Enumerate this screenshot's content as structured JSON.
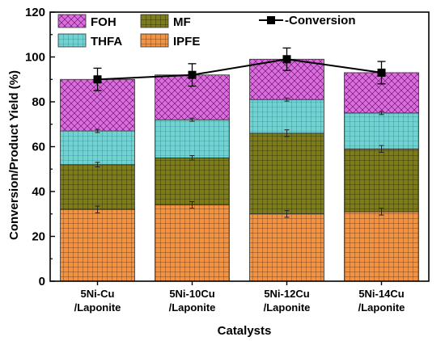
{
  "chart_data": {
    "type": "bar",
    "stacked": true,
    "categories": [
      [
        "5Ni-Cu",
        "/Laponite"
      ],
      [
        "5Ni-10Cu",
        "/Laponite"
      ],
      [
        "5Ni-12Cu",
        "/Laponite"
      ],
      [
        "5Ni-14Cu",
        "/Laponite"
      ]
    ],
    "series": [
      {
        "name": "IPFE",
        "values": [
          32,
          34,
          30,
          31
        ],
        "errors": [
          1.5,
          1.5,
          1.5,
          1.5
        ],
        "color": "#f5923e",
        "pattern": "grid"
      },
      {
        "name": "MF",
        "values": [
          20,
          21,
          36,
          28
        ],
        "errors": [
          1,
          1,
          1.5,
          1.5
        ],
        "color": "#7d7c17",
        "pattern": "grid"
      },
      {
        "name": "THFA",
        "values": [
          15,
          17,
          15,
          16
        ],
        "errors": [
          0.7,
          0.7,
          0.7,
          0.7
        ],
        "color": "#6fd3d3",
        "pattern": "grid"
      },
      {
        "name": "FOH",
        "values": [
          23,
          20,
          18,
          18
        ],
        "errors": [
          0,
          0,
          0,
          0
        ],
        "color": "#dd6ee0",
        "pattern": "crosshatch"
      }
    ],
    "line": {
      "name": "-Conversion",
      "values": [
        90,
        92,
        99,
        93
      ],
      "errors": [
        5,
        5,
        5,
        5
      ],
      "marker": "square",
      "color": "#000000"
    },
    "xlabel": "Catalysts",
    "ylabel": "Conversion/Product Yield (%)",
    "ylim": [
      0,
      120
    ],
    "yticks": [
      0,
      20,
      40,
      60,
      80,
      100,
      120
    ],
    "legend_order": [
      "FOH",
      "MF",
      "THFA",
      "IPFE"
    ],
    "legend_placement": "top-left",
    "grid": false
  }
}
